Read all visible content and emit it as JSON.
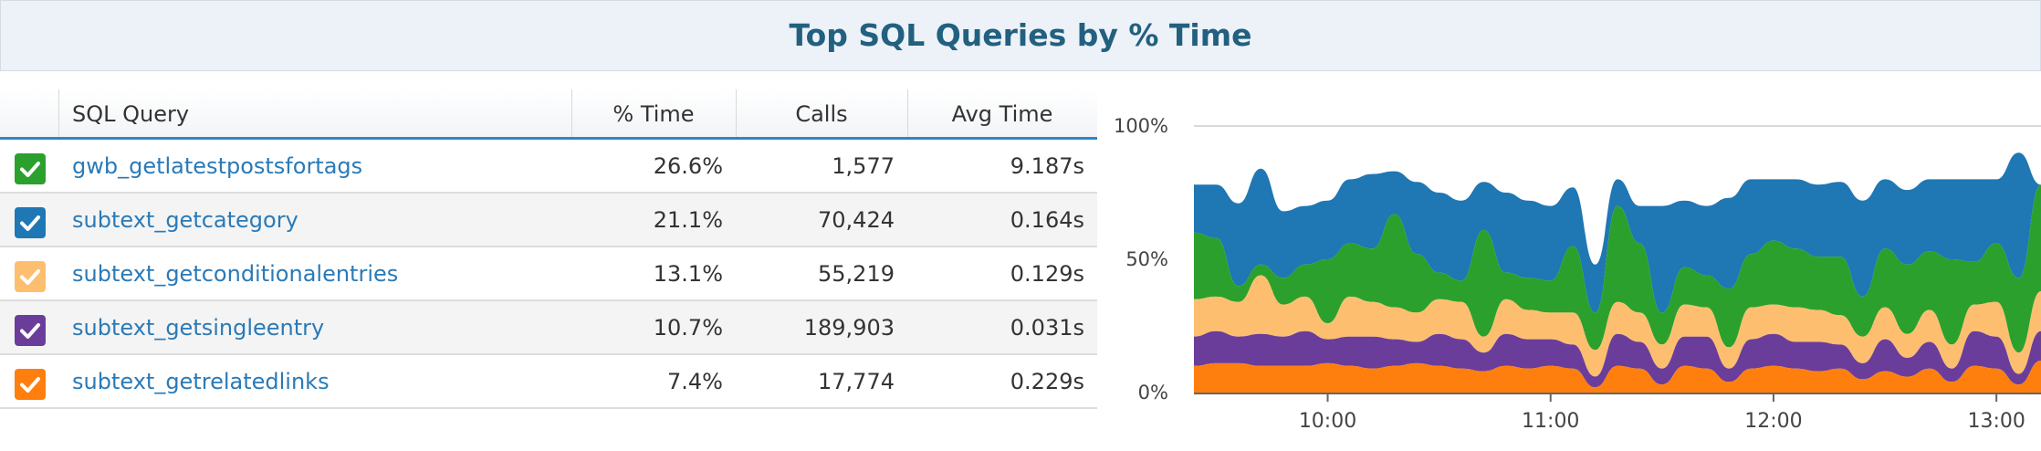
{
  "title": "Top SQL Queries by % Time",
  "table": {
    "columns": [
      "SQL Query",
      "% Time",
      "Calls",
      "Avg Time"
    ],
    "rows": [
      {
        "name": "gwb_getlatestpostsfortags",
        "time": "26.6%",
        "calls": "1,577",
        "avg": "9.187s",
        "color": "#2ca02c",
        "checked": true
      },
      {
        "name": "subtext_getcategory",
        "time": "21.1%",
        "calls": "70,424",
        "avg": "0.164s",
        "color": "#1f77b4",
        "checked": true
      },
      {
        "name": "subtext_getconditionalentries",
        "time": "13.1%",
        "calls": "55,219",
        "avg": "0.129s",
        "color": "#fdbf6f",
        "checked": true
      },
      {
        "name": "subtext_getsingleentry",
        "time": "10.7%",
        "calls": "189,903",
        "avg": "0.031s",
        "color": "#6a3d9a",
        "checked": true
      },
      {
        "name": "subtext_getrelatedlinks",
        "time": "7.4%",
        "calls": "17,774",
        "avg": "0.229s",
        "color": "#ff7f0e",
        "checked": true
      }
    ]
  },
  "chart_data": {
    "type": "area",
    "stacked": true,
    "grid": false,
    "y_ticks": [
      "100%",
      "50%",
      "0%"
    ],
    "ylim": [
      0,
      100
    ],
    "x_ticks": [
      "10:00",
      "11:00",
      "12:00",
      "13:00"
    ],
    "x": [
      "09:24",
      "09:30",
      "09:36",
      "09:42",
      "09:48",
      "09:54",
      "10:00",
      "10:06",
      "10:12",
      "10:18",
      "10:24",
      "10:30",
      "10:36",
      "10:42",
      "10:48",
      "10:54",
      "11:00",
      "11:06",
      "11:12",
      "11:18",
      "11:24",
      "11:30",
      "11:36",
      "11:42",
      "11:48",
      "11:54",
      "12:00",
      "12:06",
      "12:12",
      "12:18",
      "12:24",
      "12:30",
      "12:36",
      "12:42",
      "12:48",
      "12:54",
      "13:00",
      "13:06",
      "13:12"
    ],
    "series": [
      {
        "name": "subtext_getrelatedlinks",
        "color": "#ff7f0e",
        "values": [
          10,
          11,
          11,
          10,
          10,
          10,
          11,
          10,
          9,
          10,
          11,
          10,
          9,
          8,
          10,
          9,
          10,
          9,
          2,
          10,
          9,
          3,
          10,
          9,
          4,
          9,
          10,
          9,
          8,
          9,
          5,
          8,
          6,
          9,
          4,
          10,
          9,
          3,
          12
        ]
      },
      {
        "name": "subtext_getsingleentry",
        "color": "#6a3d9a",
        "values": [
          11,
          12,
          10,
          12,
          11,
          13,
          9,
          11,
          12,
          10,
          8,
          12,
          11,
          7,
          12,
          11,
          10,
          9,
          4,
          12,
          10,
          6,
          11,
          12,
          5,
          11,
          12,
          10,
          11,
          9,
          6,
          12,
          7,
          10,
          5,
          13,
          12,
          4,
          11
        ]
      },
      {
        "name": "subtext_getconditionalentries",
        "color": "#fdbf6f",
        "values": [
          14,
          13,
          13,
          22,
          12,
          13,
          6,
          15,
          13,
          12,
          11,
          13,
          14,
          6,
          13,
          11,
          10,
          12,
          10,
          12,
          11,
          9,
          12,
          11,
          8,
          12,
          11,
          13,
          12,
          11,
          10,
          12,
          9,
          12,
          9,
          10,
          13,
          8,
          15
        ]
      },
      {
        "name": "gwb_getlatestpostsfortags",
        "color": "#2ca02c",
        "values": [
          25,
          22,
          6,
          4,
          10,
          12,
          24,
          20,
          20,
          35,
          22,
          10,
          8,
          40,
          10,
          12,
          12,
          25,
          14,
          36,
          26,
          12,
          14,
          12,
          22,
          20,
          24,
          22,
          20,
          22,
          15,
          22,
          26,
          22,
          32,
          16,
          22,
          28,
          40
        ]
      },
      {
        "name": "subtext_getcategory",
        "color": "#1f77b4",
        "values": [
          18,
          20,
          31,
          36,
          25,
          22,
          22,
          24,
          28,
          16,
          27,
          30,
          30,
          18,
          30,
          29,
          28,
          22,
          18,
          10,
          14,
          40,
          25,
          26,
          34,
          28,
          23,
          26,
          27,
          28,
          36,
          26,
          28,
          27,
          30,
          31,
          24,
          47,
          0
        ]
      }
    ]
  }
}
